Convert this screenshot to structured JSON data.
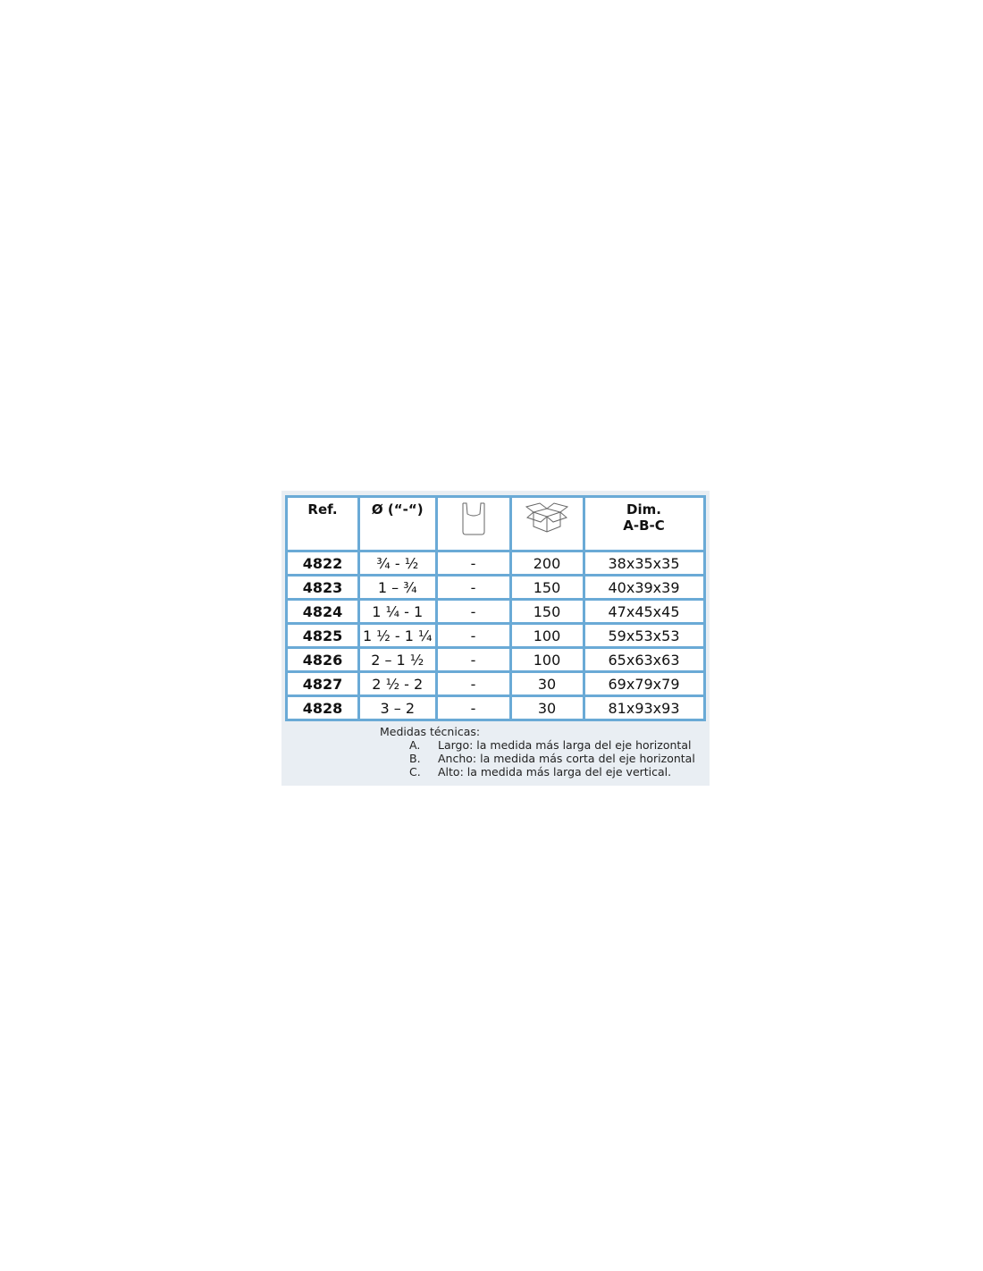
{
  "table": {
    "headers": {
      "ref": "Ref.",
      "diameter": "Ø (“-“)",
      "bag_icon": "bag-icon",
      "box_icon": "box-icon",
      "dim_line1": "Dim.",
      "dim_line2": "A-B-C"
    },
    "rows": [
      {
        "ref": "4822",
        "diameter": "¾ - ½",
        "bag": "-",
        "box": "200",
        "dim": "38x35x35"
      },
      {
        "ref": "4823",
        "diameter": "1 – ¾",
        "bag": "-",
        "box": "150",
        "dim": "40x39x39"
      },
      {
        "ref": "4824",
        "diameter": "1 ¼ - 1",
        "bag": "-",
        "box": "150",
        "dim": "47x45x45"
      },
      {
        "ref": "4825",
        "diameter": "1 ½ - 1 ¼",
        "bag": "-",
        "box": "100",
        "dim": "59x53x53"
      },
      {
        "ref": "4826",
        "diameter": "2 – 1 ½",
        "bag": "-",
        "box": "100",
        "dim": "65x63x63"
      },
      {
        "ref": "4827",
        "diameter": "2 ½ - 2",
        "bag": "-",
        "box": "30",
        "dim": "69x79x79"
      },
      {
        "ref": "4828",
        "diameter": "3 – 2",
        "bag": "-",
        "box": "30",
        "dim": "81x93x93"
      }
    ]
  },
  "notes": {
    "title": "Medidas técnicas:",
    "items": [
      {
        "key": "A.",
        "text": "Largo: la medida más larga del eje horizontal"
      },
      {
        "key": "B.",
        "text": "Ancho: la medida más corta del eje horizontal"
      },
      {
        "key": "C.",
        "text": "Alto: la medida más larga del eje vertical."
      }
    ]
  },
  "colors": {
    "border": "#6aaad6",
    "panel": "#e9eef3"
  }
}
